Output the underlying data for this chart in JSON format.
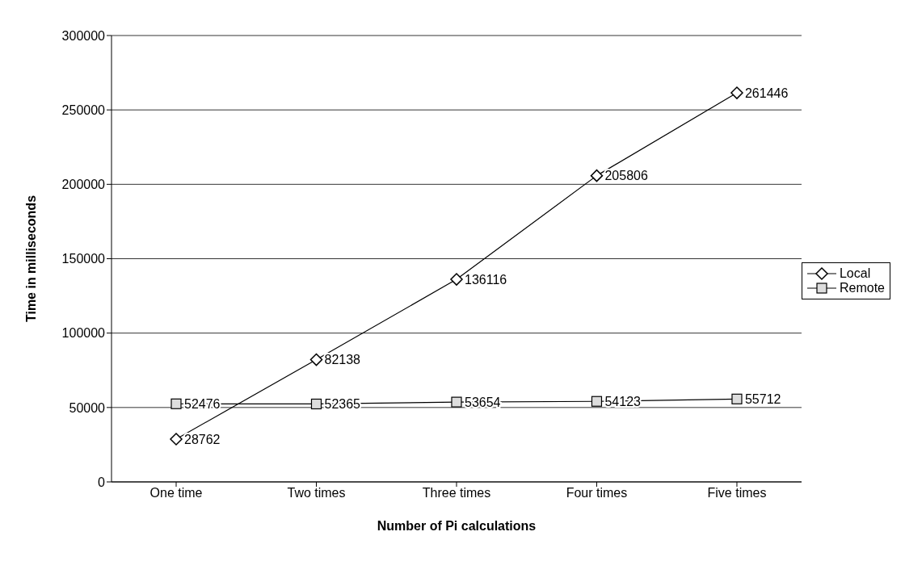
{
  "chart_data": {
    "type": "line",
    "categories": [
      "One time",
      "Two times",
      "Three times",
      "Four times",
      "Five times"
    ],
    "series": [
      {
        "name": "Local",
        "color": "#000000",
        "marker": "diamond",
        "values": [
          28762,
          82138,
          136116,
          205806,
          261446
        ]
      },
      {
        "name": "Remote",
        "color": "#000000",
        "marker": "square",
        "values": [
          52476,
          52365,
          53654,
          54123,
          55712
        ]
      }
    ],
    "xlabel": "Number of Pi calculations",
    "ylabel": "Time in milliseconds",
    "ylim": [
      0,
      300000
    ],
    "yticks": [
      0,
      50000,
      100000,
      150000,
      200000,
      250000,
      300000
    ],
    "grid": "y",
    "legend": "right",
    "data_labels": true
  }
}
